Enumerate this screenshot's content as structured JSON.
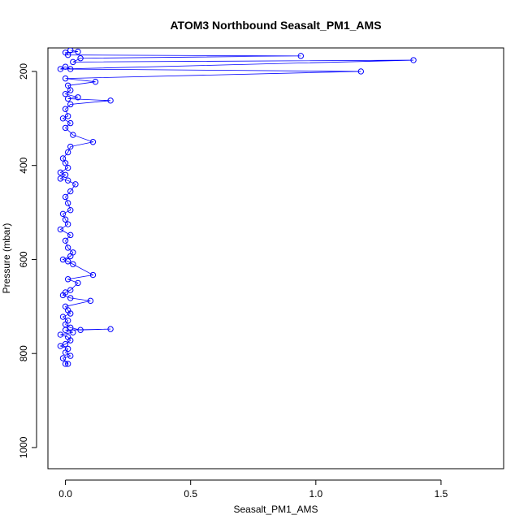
{
  "chart_data": {
    "type": "scatter",
    "title": "ATOM3 Northbound Seasalt_PM1_AMS",
    "xlabel": "Seasalt_PM1_AMS",
    "ylabel": "Pressure (mbar)",
    "xlim": [
      -0.07,
      1.75
    ],
    "ylim": [
      1045,
      150
    ],
    "y_inverted": true,
    "x_ticks": [
      0.0,
      0.5,
      1.0,
      1.5
    ],
    "x_tick_labels": [
      "0.0",
      "0.5",
      "1.0",
      "1.5"
    ],
    "y_ticks": [
      200,
      400,
      600,
      800,
      1000
    ],
    "y_tick_labels": [
      "200",
      "400",
      "600",
      "800",
      "1000"
    ],
    "grid": false,
    "legend": "none",
    "style": "lines+points",
    "series": [
      {
        "color": "#0000ff",
        "points": [
          [
            0.0,
            822
          ],
          [
            0.01,
            822
          ],
          [
            -0.01,
            810
          ],
          [
            0.02,
            805
          ],
          [
            0.0,
            798
          ],
          [
            0.01,
            790
          ],
          [
            -0.02,
            784
          ],
          [
            0.0,
            780
          ],
          [
            0.02,
            772
          ],
          [
            0.01,
            765
          ],
          [
            -0.02,
            760
          ],
          [
            0.03,
            755
          ],
          [
            0.0,
            750
          ],
          [
            0.18,
            748
          ],
          [
            0.06,
            750
          ],
          [
            0.02,
            745
          ],
          [
            0.0,
            738
          ],
          [
            0.01,
            730
          ],
          [
            -0.01,
            722
          ],
          [
            0.02,
            715
          ],
          [
            0.01,
            708
          ],
          [
            0.0,
            700
          ],
          [
            0.1,
            688
          ],
          [
            0.02,
            682
          ],
          [
            -0.01,
            676
          ],
          [
            0.0,
            670
          ],
          [
            0.02,
            665
          ],
          [
            0.05,
            650
          ],
          [
            0.01,
            642
          ],
          [
            0.11,
            633
          ],
          [
            0.03,
            610
          ],
          [
            0.01,
            604
          ],
          [
            -0.01,
            600
          ],
          [
            0.02,
            593
          ],
          [
            0.03,
            585
          ],
          [
            0.01,
            575
          ],
          [
            0.0,
            560
          ],
          [
            0.02,
            548
          ],
          [
            -0.02,
            536
          ],
          [
            0.01,
            525
          ],
          [
            0.0,
            515
          ],
          [
            -0.01,
            503
          ],
          [
            0.02,
            495
          ],
          [
            0.01,
            480
          ],
          [
            0.0,
            467
          ],
          [
            0.02,
            455
          ],
          [
            0.04,
            440
          ],
          [
            0.01,
            432
          ],
          [
            -0.02,
            428
          ],
          [
            0.0,
            420
          ],
          [
            -0.02,
            415
          ],
          [
            0.01,
            405
          ],
          [
            0.0,
            395
          ],
          [
            -0.01,
            385
          ],
          [
            0.01,
            372
          ],
          [
            0.02,
            360
          ],
          [
            0.11,
            350
          ],
          [
            0.03,
            335
          ],
          [
            0.0,
            320
          ],
          [
            0.02,
            310
          ],
          [
            -0.01,
            300
          ],
          [
            0.01,
            295
          ],
          [
            0.0,
            280
          ],
          [
            0.02,
            270
          ],
          [
            0.18,
            262
          ],
          [
            0.01,
            258
          ],
          [
            0.05,
            255
          ],
          [
            0.0,
            248
          ],
          [
            0.02,
            240
          ],
          [
            0.01,
            230
          ],
          [
            0.12,
            222
          ],
          [
            0.0,
            215
          ],
          [
            1.18,
            200
          ],
          [
            0.02,
            195
          ],
          [
            0.0,
            190
          ],
          [
            -0.02,
            195
          ],
          [
            1.39,
            176
          ],
          [
            0.03,
            180
          ],
          [
            0.06,
            172
          ],
          [
            0.94,
            167
          ],
          [
            0.01,
            165
          ],
          [
            0.0,
            160
          ],
          [
            0.05,
            158
          ],
          [
            0.02,
            155
          ]
        ]
      }
    ]
  }
}
